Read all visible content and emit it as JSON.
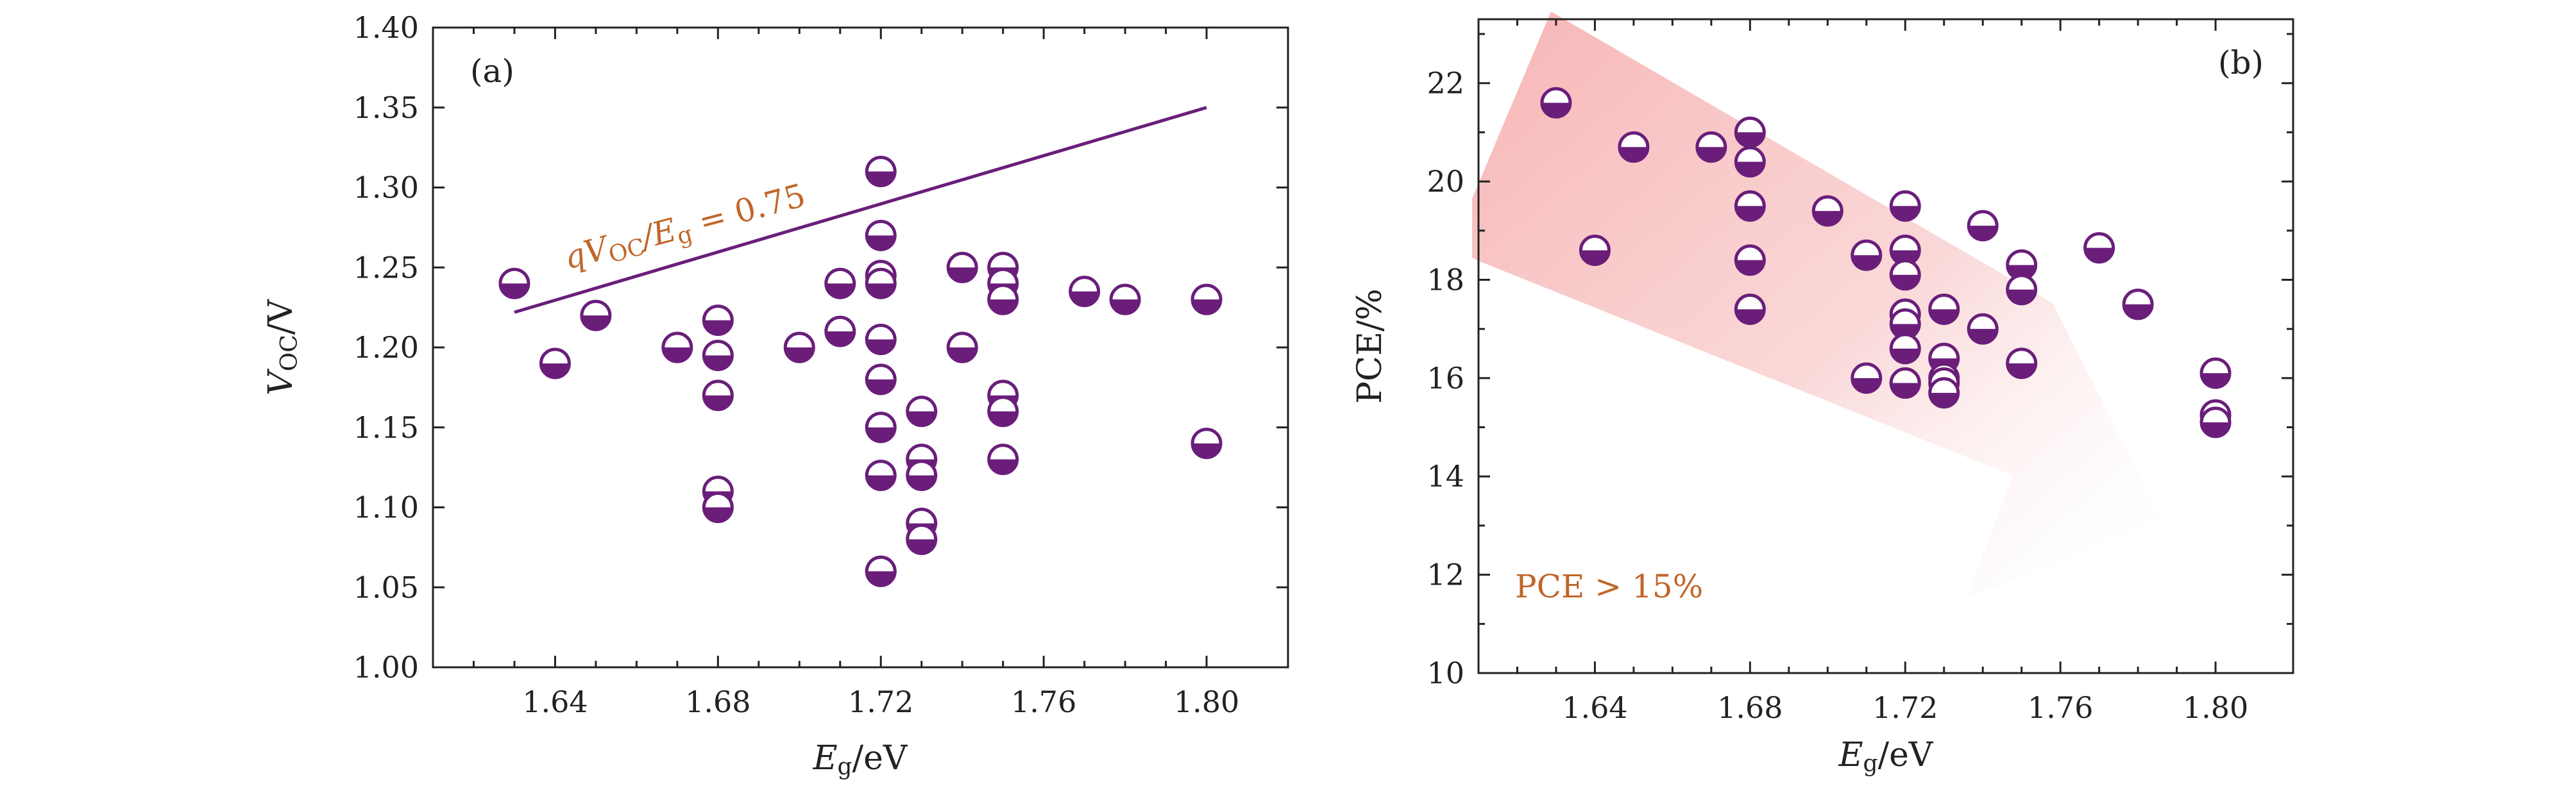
{
  "colors": {
    "marker": "#6a1e7a",
    "annotation": "#c0662a",
    "arrow": "#f4b4b4",
    "axis": "#222222"
  },
  "chart_data": [
    {
      "type": "scatter",
      "panel_label": "(a)",
      "xlabel_main": "E",
      "xlabel_sub": "g",
      "xlabel_unit": "/eV",
      "ylabel_main": "V",
      "ylabel_sub": "OC",
      "ylabel_unit": "/V",
      "xlim": [
        1.61,
        1.82
      ],
      "ylim": [
        1.0,
        1.4
      ],
      "x_ticks": [
        "1.64",
        "1.68",
        "1.72",
        "1.76",
        "1.80"
      ],
      "y_ticks": [
        "1.00",
        "1.05",
        "1.10",
        "1.15",
        "1.20",
        "1.25",
        "1.30",
        "1.35",
        "1.40"
      ],
      "reference_line": {
        "label_q": "qV",
        "label_sub1": "OC",
        "label_mid": "/E",
        "label_sub2": "g",
        "label_rest": " = 0.75",
        "x": [
          1.63,
          1.8
        ],
        "y": [
          1.222,
          1.35
        ]
      },
      "x": [
        1.63,
        1.64,
        1.65,
        1.67,
        1.68,
        1.68,
        1.68,
        1.68,
        1.68,
        1.7,
        1.71,
        1.71,
        1.72,
        1.72,
        1.72,
        1.72,
        1.72,
        1.72,
        1.72,
        1.72,
        1.72,
        1.72,
        1.73,
        1.73,
        1.73,
        1.73,
        1.73,
        1.74,
        1.74,
        1.75,
        1.75,
        1.75,
        1.75,
        1.75,
        1.75,
        1.77,
        1.78,
        1.8,
        1.8
      ],
      "y": [
        1.24,
        1.19,
        1.22,
        1.2,
        1.217,
        1.195,
        1.17,
        1.11,
        1.1,
        1.2,
        1.24,
        1.21,
        1.31,
        1.27,
        1.245,
        1.24,
        1.205,
        1.18,
        1.15,
        1.12,
        1.06,
        1.06,
        1.16,
        1.13,
        1.12,
        1.09,
        1.08,
        1.25,
        1.2,
        1.25,
        1.24,
        1.23,
        1.17,
        1.16,
        1.13,
        1.235,
        1.23,
        1.23,
        1.14
      ]
    },
    {
      "type": "scatter",
      "panel_label": "(b)",
      "xlabel_main": "E",
      "xlabel_sub": "g",
      "xlabel_unit": "/eV",
      "ylabel": "PCE/%",
      "annotation": "PCE > 15%",
      "xlim": [
        1.61,
        1.82
      ],
      "ylim": [
        10,
        23.3
      ],
      "x_ticks": [
        "1.64",
        "1.68",
        "1.72",
        "1.76",
        "1.80"
      ],
      "y_ticks": [
        "10",
        "12",
        "14",
        "16",
        "18",
        "20",
        "22"
      ],
      "x": [
        1.63,
        1.64,
        1.65,
        1.67,
        1.68,
        1.68,
        1.68,
        1.68,
        1.68,
        1.7,
        1.71,
        1.71,
        1.72,
        1.72,
        1.72,
        1.72,
        1.72,
        1.72,
        1.72,
        1.72,
        1.73,
        1.73,
        1.73,
        1.73,
        1.73,
        1.74,
        1.74,
        1.75,
        1.75,
        1.75,
        1.77,
        1.78,
        1.8,
        1.8,
        1.8
      ],
      "y": [
        21.6,
        18.6,
        20.7,
        20.7,
        21.0,
        20.4,
        19.5,
        18.4,
        17.4,
        19.4,
        18.5,
        16.0,
        19.5,
        18.6,
        18.1,
        17.3,
        17.1,
        16.6,
        15.9,
        15.9,
        17.4,
        16.4,
        16.0,
        15.9,
        15.7,
        19.1,
        17.0,
        18.3,
        17.8,
        16.3,
        18.65,
        17.5,
        16.1,
        15.25,
        15.1
      ]
    }
  ]
}
